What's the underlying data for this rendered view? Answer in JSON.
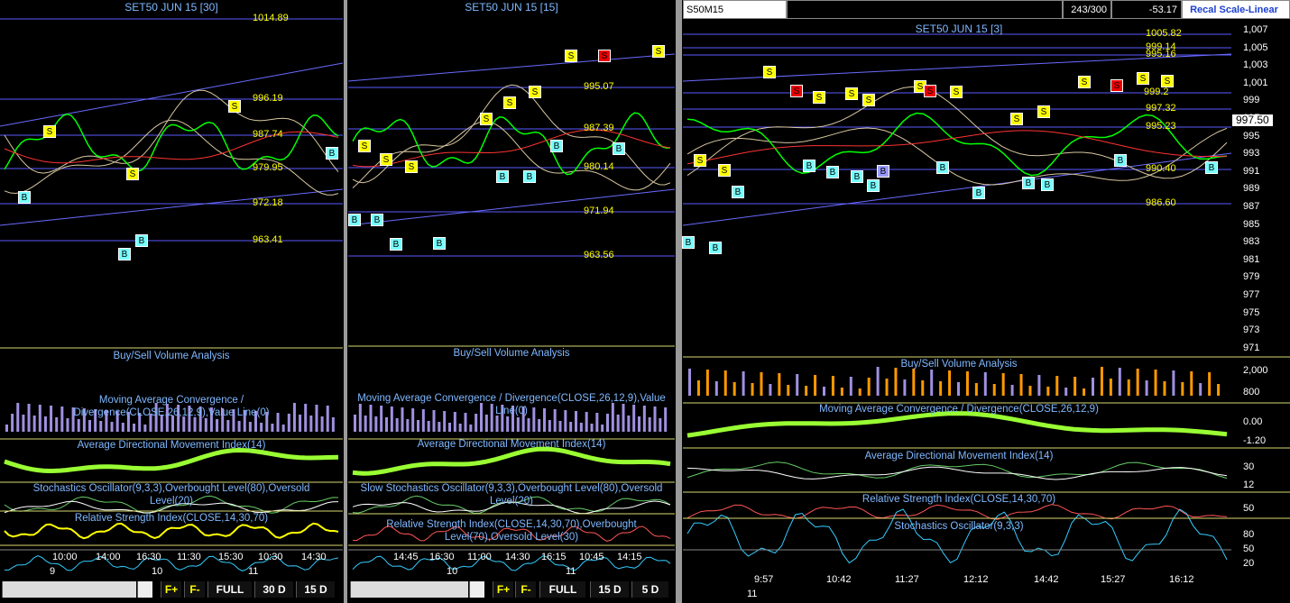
{
  "panels": [
    {
      "title": "SET50 JUN 15  [30]",
      "price_labels": [
        "1014.89",
        "996.19",
        "987.74",
        "979.95",
        "972.18",
        "963.41"
      ],
      "markers": [
        "S",
        "S",
        "S",
        "B",
        "B",
        "B",
        "B"
      ],
      "indicators": [
        "Buy/Sell Volume Analysis",
        "Moving Average Convergence / Divergence(CLOSE,26,12,9),Value Line(0)",
        "Average Directional Movement Index(14)",
        "Stochastics Oscillator(9,3,3),Overbought Level(80),Oversold Level(20)",
        "Relative Strength Index(CLOSE,14,30,70)"
      ],
      "time_labels": [
        "10:00",
        "14:00",
        "16:30",
        "11:30",
        "15:30",
        "10:30",
        "14:30"
      ],
      "date_labels": [
        "9",
        "10",
        "11"
      ],
      "buttons": [
        "F+",
        "F-",
        "FULL",
        "30 D",
        "15 D"
      ]
    },
    {
      "title": "SET50 JUN 15  [15]",
      "price_labels": [
        "995.07",
        "987.39",
        "980.14",
        "971.94",
        "963.56"
      ],
      "markers": [
        "S",
        "S",
        "S",
        "S",
        "S",
        "S",
        "S",
        "S",
        "S",
        "B",
        "B",
        "B",
        "B",
        "B",
        "B",
        "B",
        "B"
      ],
      "indicators": [
        "Buy/Sell Volume Analysis",
        "Moving Average Convergence / Divergence(CLOSE,26,12,9),Value Line(0)",
        "Average Directional Movement Index(14)",
        "Slow Stochastics Oscillator(9,3,3),Overbought Level(80),Oversold Level(20)",
        "Relative Strength Index(CLOSE,14,30,70),Overbought Level(70),Oversold Level(30)"
      ],
      "time_labels": [
        "14:45",
        "16:30",
        "11:00",
        "14:30",
        "16:15",
        "10:45",
        "14:15"
      ],
      "date_labels": [
        "10",
        "11"
      ],
      "buttons": [
        "F+",
        "F-",
        "FULL",
        "15 D",
        "5 D"
      ]
    },
    {
      "symbol": "S50M15",
      "counter": "243/300",
      "change": "-53.17",
      "scale_button": "Recal Scale-Linear",
      "title": "SET50 JUN 15  [3]",
      "last_price": "997.50",
      "price_labels": [
        "1005.82",
        "999.14",
        "995.16",
        "999.2",
        "997.32",
        "995.23",
        "990.40",
        "986.60"
      ],
      "markers": [
        "S",
        "S",
        "S",
        "S",
        "S",
        "S",
        "S",
        "S",
        "S",
        "S",
        "S",
        "S",
        "S",
        "S",
        "S",
        "S",
        "B",
        "B",
        "B",
        "B",
        "B",
        "B",
        "B",
        "B",
        "B",
        "B",
        "B",
        "B",
        "B",
        "B"
      ],
      "y_axis": [
        "1,007",
        "1,005",
        "1,003",
        "1,001",
        "999",
        "997",
        "995",
        "993",
        "991",
        "989",
        "987",
        "985",
        "983",
        "981",
        "979",
        "977",
        "975",
        "973",
        "971"
      ],
      "indicator_axis": [
        "2,000",
        "800",
        "0.00",
        "-1.20",
        "30",
        "12",
        "50",
        "80",
        "50",
        "20"
      ],
      "indicators": [
        "Buy/Sell Volume Analysis",
        "Moving Average Convergence / Divergence(CLOSE,26,12,9)",
        "Average Directional Movement Index(14)",
        "Relative Strength Index(CLOSE,14,30,70)",
        "Stochastics Oscillator(9,3,3)"
      ],
      "time_labels": [
        "9:57",
        "10:42",
        "11:27",
        "12:12",
        "14:42",
        "15:27",
        "16:12"
      ],
      "date_labels": [
        "11"
      ]
    }
  ]
}
